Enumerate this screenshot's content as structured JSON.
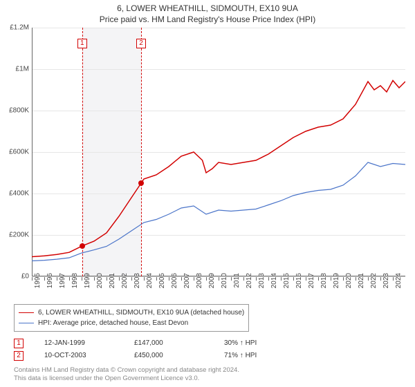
{
  "title": "6, LOWER WHEATHILL, SIDMOUTH, EX10 9UA",
  "subtitle": "Price paid vs. HM Land Registry's House Price Index (HPI)",
  "chart": {
    "type": "line",
    "x_axis": {
      "min": 1995,
      "max": 2025,
      "ticks": [
        1995,
        1996,
        1997,
        1998,
        1999,
        2000,
        2001,
        2002,
        2003,
        2004,
        2005,
        2006,
        2007,
        2008,
        2009,
        2010,
        2011,
        2012,
        2013,
        2014,
        2015,
        2016,
        2017,
        2018,
        2019,
        2020,
        2021,
        2022,
        2023,
        2024
      ],
      "tick_label_fontsize": 10,
      "tick_label_rotation": -90
    },
    "y_axis": {
      "min": 0,
      "max": 1200000,
      "ticks": [
        0,
        200000,
        400000,
        600000,
        800000,
        1000000,
        1200000
      ],
      "tick_labels": [
        "£0",
        "£200K",
        "£400K",
        "£600K",
        "£800K",
        "£1M",
        "£1.2M"
      ],
      "tick_label_fontsize": 10
    },
    "grid_color": "#e6e6e6",
    "background_color": "#ffffff",
    "shaded_band": {
      "from": 1999.04,
      "to": 2003.78,
      "color": "#f4f4f6"
    },
    "series": [
      {
        "id": "property",
        "label": "6, LOWER WHEATHILL, SIDMOUTH, EX10 9UA (detached house)",
        "color": "#d20000",
        "line_width": 1.5,
        "data": [
          [
            1995,
            95000
          ],
          [
            1996,
            99000
          ],
          [
            1997,
            106000
          ],
          [
            1998,
            116000
          ],
          [
            1999.04,
            147000
          ],
          [
            2000,
            170000
          ],
          [
            2001,
            210000
          ],
          [
            2002,
            290000
          ],
          [
            2003,
            380000
          ],
          [
            2003.78,
            450000
          ],
          [
            2004,
            470000
          ],
          [
            2005,
            490000
          ],
          [
            2006,
            530000
          ],
          [
            2007,
            580000
          ],
          [
            2008,
            600000
          ],
          [
            2008.7,
            560000
          ],
          [
            2009,
            500000
          ],
          [
            2009.5,
            520000
          ],
          [
            2010,
            550000
          ],
          [
            2011,
            540000
          ],
          [
            2012,
            550000
          ],
          [
            2013,
            560000
          ],
          [
            2014,
            590000
          ],
          [
            2015,
            630000
          ],
          [
            2016,
            670000
          ],
          [
            2017,
            700000
          ],
          [
            2018,
            720000
          ],
          [
            2019,
            730000
          ],
          [
            2020,
            760000
          ],
          [
            2021,
            830000
          ],
          [
            2022,
            940000
          ],
          [
            2022.5,
            900000
          ],
          [
            2023,
            920000
          ],
          [
            2023.5,
            890000
          ],
          [
            2024,
            945000
          ],
          [
            2024.5,
            910000
          ],
          [
            2025,
            940000
          ]
        ]
      },
      {
        "id": "hpi",
        "label": "HPI: Average price, detached house, East Devon",
        "color": "#4a74c9",
        "line_width": 1.2,
        "data": [
          [
            1995,
            75000
          ],
          [
            1996,
            78000
          ],
          [
            1997,
            83000
          ],
          [
            1998,
            90000
          ],
          [
            1999,
            113000
          ],
          [
            2000,
            128000
          ],
          [
            2001,
            145000
          ],
          [
            2002,
            180000
          ],
          [
            2003,
            220000
          ],
          [
            2004,
            260000
          ],
          [
            2005,
            275000
          ],
          [
            2006,
            300000
          ],
          [
            2007,
            330000
          ],
          [
            2008,
            340000
          ],
          [
            2009,
            300000
          ],
          [
            2010,
            320000
          ],
          [
            2011,
            315000
          ],
          [
            2012,
            320000
          ],
          [
            2013,
            325000
          ],
          [
            2014,
            345000
          ],
          [
            2015,
            365000
          ],
          [
            2016,
            390000
          ],
          [
            2017,
            405000
          ],
          [
            2018,
            415000
          ],
          [
            2019,
            420000
          ],
          [
            2020,
            440000
          ],
          [
            2021,
            485000
          ],
          [
            2022,
            550000
          ],
          [
            2023,
            530000
          ],
          [
            2024,
            545000
          ],
          [
            2025,
            540000
          ]
        ]
      }
    ],
    "markers": [
      {
        "n": "1",
        "year": 1999.04,
        "value": 147000
      },
      {
        "n": "2",
        "year": 2003.78,
        "value": 450000
      }
    ]
  },
  "events": [
    {
      "n": "1",
      "date": "12-JAN-1999",
      "price": "£147,000",
      "vs_hpi": "30% ↑ HPI"
    },
    {
      "n": "2",
      "date": "10-OCT-2003",
      "price": "£450,000",
      "vs_hpi": "71% ↑ HPI"
    }
  ],
  "license_line1": "Contains HM Land Registry data © Crown copyright and database right 2024.",
  "license_line2": "This data is licensed under the Open Government Licence v3.0.",
  "colors": {
    "axis": "#666666",
    "text": "#333333",
    "muted": "#888888"
  }
}
